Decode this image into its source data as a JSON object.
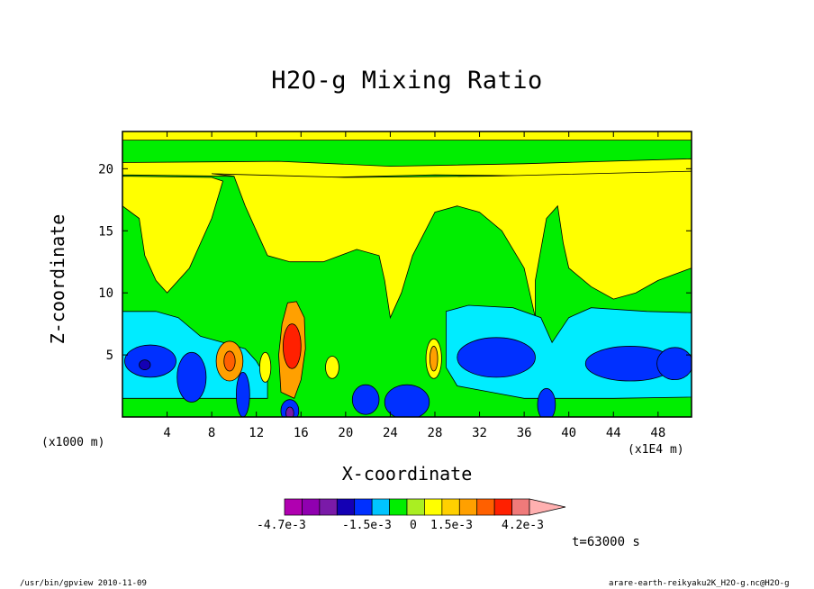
{
  "chart_data": {
    "type": "heatmap",
    "title": "H2O-g Mixing Ratio",
    "xlabel": "X-coordinate",
    "ylabel": "Z-coordinate",
    "x_unit": "(x1E4 m)",
    "y_unit": "(x1000 m)",
    "xlim": [
      0,
      51
    ],
    "ylim": [
      0,
      23
    ],
    "xticks": [
      4,
      8,
      12,
      16,
      20,
      24,
      28,
      32,
      36,
      40,
      44,
      48
    ],
    "yticks": [
      5,
      10,
      15,
      20
    ],
    "colorbar": {
      "labels": [
        "-4.7e-3",
        "-1.5e-3",
        "0",
        "1.5e-3",
        "4.2e-3"
      ],
      "levels": [
        -0.0047,
        -0.0042,
        -0.0037,
        -0.0031,
        -0.0026,
        -0.0021,
        -0.0015,
        -0.001,
        -0.0005,
        0,
        0.0005,
        0.001,
        0.0015,
        0.0021,
        0.0026,
        0.0031,
        0.0037,
        0.0042
      ],
      "colors": [
        "#b000b0",
        "#9000b0",
        "#7a1aa8",
        "#1400b4",
        "#0030ff",
        "#00c4ff",
        "#00ee00",
        "#aaee22",
        "#ffff00",
        "#ffd000",
        "#ffa000",
        "#ff6000",
        "#ff2000",
        "#f07a7a",
        "#ffb0b0"
      ]
    },
    "regions": [
      {
        "value": "cyan",
        "x": [
          0,
          4
        ],
        "z": [
          3.5,
          8.5
        ],
        "note": "cyan band near surface-left"
      },
      {
        "value": "blue",
        "x": [
          0,
          3
        ],
        "z": [
          3,
          5.5
        ]
      },
      {
        "value": "blue",
        "x": [
          5,
          7.5
        ],
        "z": [
          1,
          5
        ]
      },
      {
        "value": "orange",
        "x": [
          8.5,
          10.5
        ],
        "z": [
          3.5,
          6
        ]
      },
      {
        "value": "red",
        "x": [
          14,
          16.5
        ],
        "z": [
          4,
          9
        ]
      },
      {
        "value": "blue",
        "x": [
          20,
          23
        ],
        "z": [
          0,
          2.5
        ]
      },
      {
        "value": "blue",
        "x": [
          24,
          27
        ],
        "z": [
          0,
          2.5
        ]
      },
      {
        "value": "orange",
        "x": [
          27.5,
          28.5
        ],
        "z": [
          3,
          6
        ]
      },
      {
        "value": "cyan",
        "x": [
          29,
          37
        ],
        "z": [
          1.5,
          9
        ]
      },
      {
        "value": "blue",
        "x": [
          30,
          37
        ],
        "z": [
          3,
          6
        ]
      },
      {
        "value": "cyan",
        "x": [
          40,
          51
        ],
        "z": [
          1.5,
          9
        ]
      },
      {
        "value": "blue",
        "x": [
          41,
          51
        ],
        "z": [
          3,
          5.5
        ]
      }
    ]
  },
  "time_text": "t=63000 s",
  "footer_left": "/usr/bin/gpview   2010-11-09",
  "footer_right": "arare-earth-reikyaku2K_H2O-g.nc@H2O-g"
}
